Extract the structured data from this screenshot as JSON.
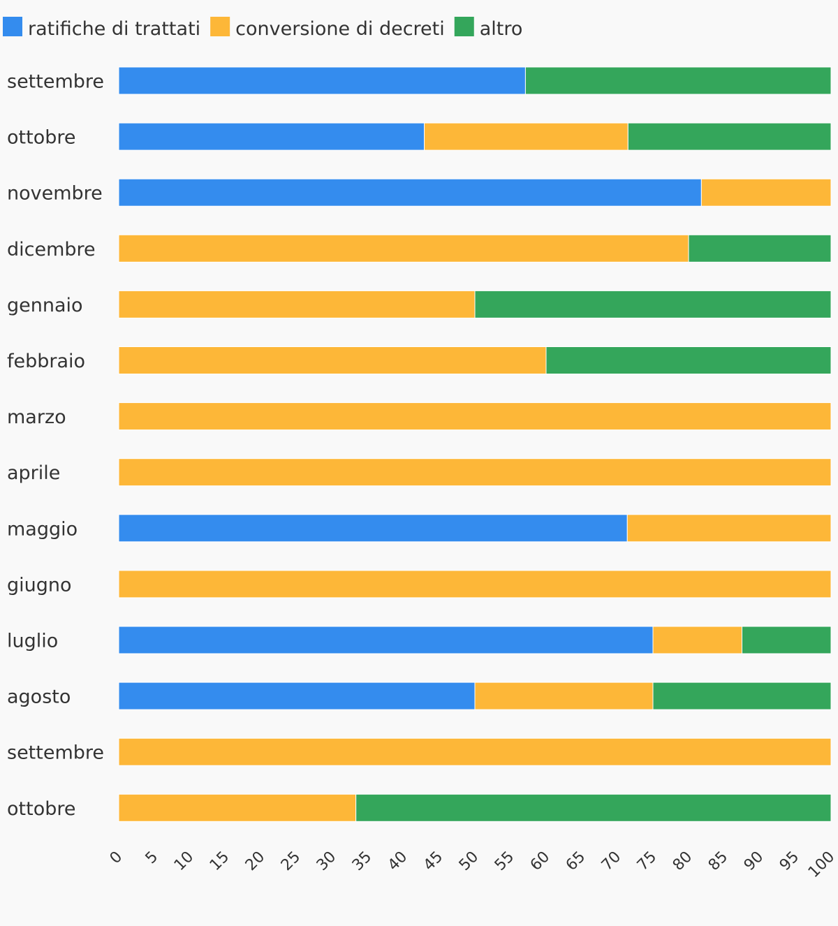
{
  "chart_data": {
    "type": "bar",
    "orientation": "horizontal",
    "stacked": true,
    "legend_position": "top-left",
    "grid": false,
    "xlim": [
      0,
      100
    ],
    "x_ticks": [
      "0",
      "5",
      "10",
      "15",
      "20",
      "25",
      "30",
      "35",
      "40",
      "45",
      "50",
      "55",
      "60",
      "65",
      "70",
      "75",
      "80",
      "85",
      "90",
      "95",
      "100"
    ],
    "categories": [
      "settembre",
      "ottobre",
      "novembre",
      "dicembre",
      "gennaio",
      "febbraio",
      "marzo",
      "aprile",
      "maggio",
      "giugno",
      "luglio",
      "agosto",
      "settembre",
      "ottobre"
    ],
    "series": [
      {
        "name": "ratifiche di trattati",
        "color": "#348cee",
        "values": [
          57.1,
          42.9,
          81.8,
          0,
          0,
          0,
          0,
          0,
          71.4,
          0,
          75,
          50,
          0,
          0
        ]
      },
      {
        "name": "conversione di decreti",
        "color": "#fdb738",
        "values": [
          0,
          28.6,
          18.2,
          80,
          50,
          60,
          100,
          100,
          28.6,
          100,
          12.5,
          25,
          100,
          33.3
        ]
      },
      {
        "name": "altro",
        "color": "#34a65b",
        "values": [
          42.9,
          28.5,
          0,
          20,
          50,
          40,
          0,
          0,
          0,
          0,
          12.5,
          25,
          0,
          66.7
        ]
      }
    ]
  }
}
